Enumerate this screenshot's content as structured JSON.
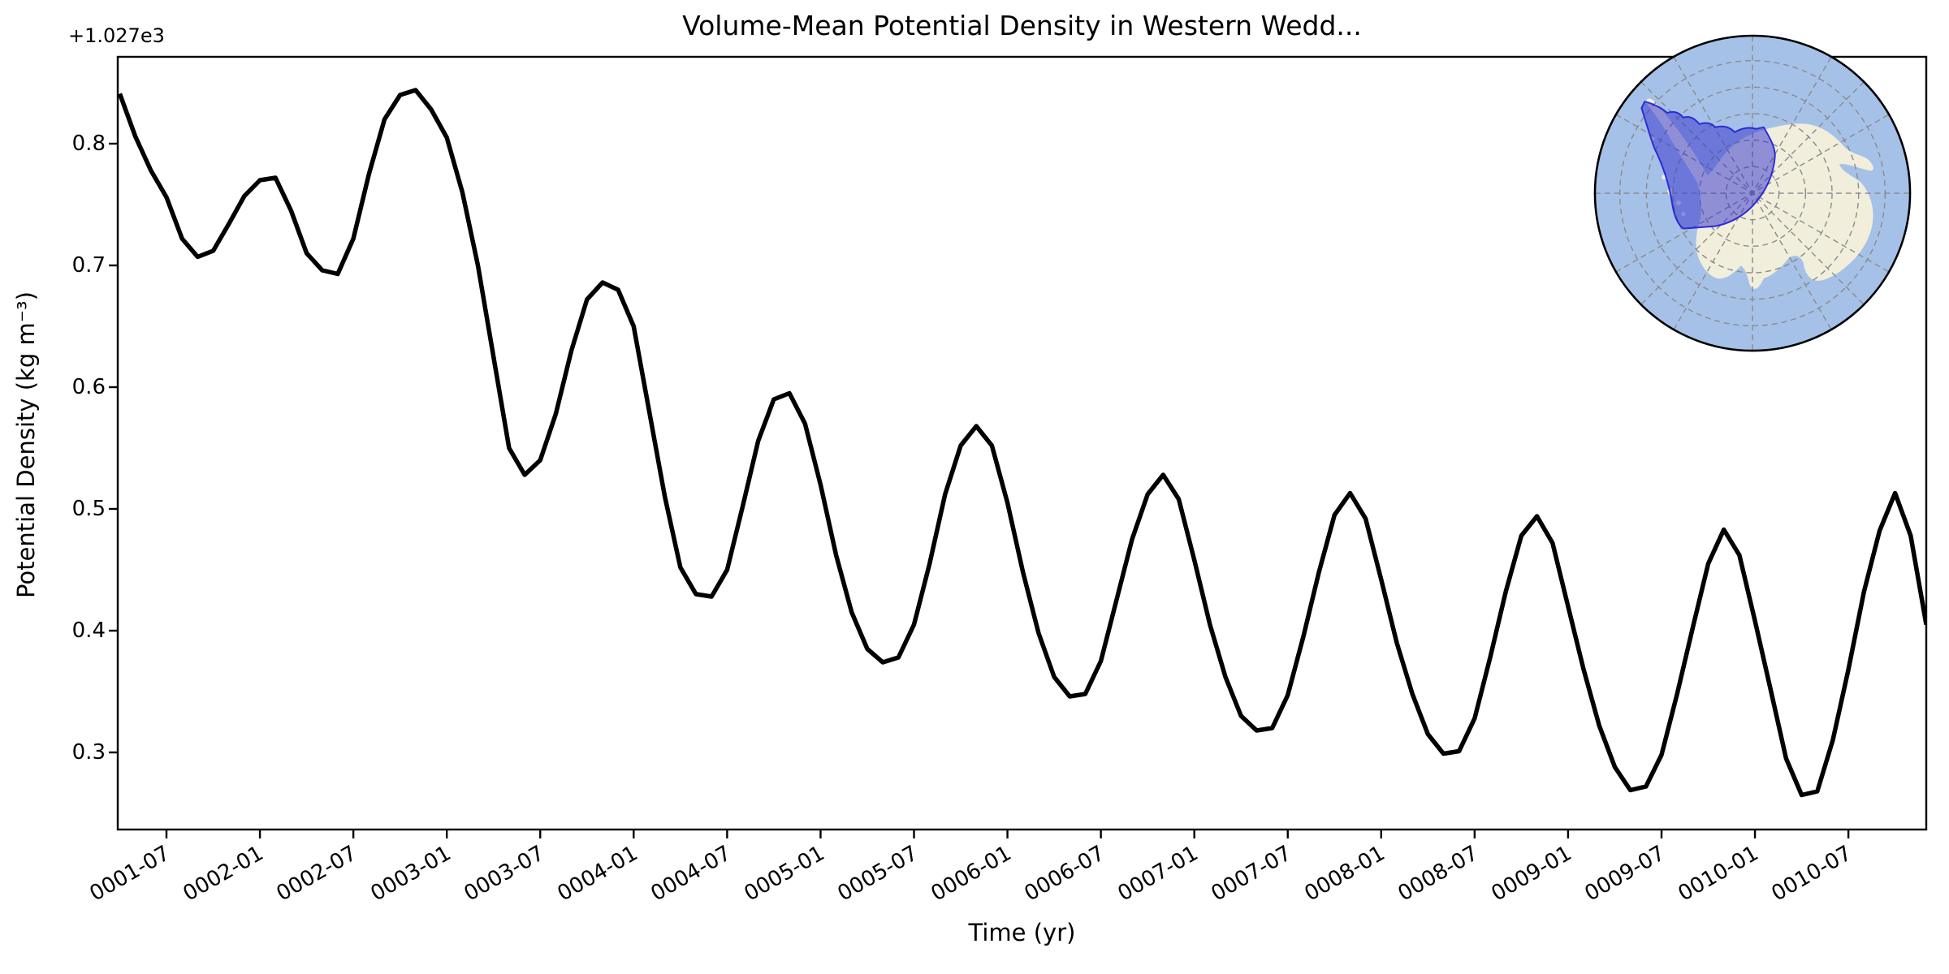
{
  "title": "Volume-Mean Potential Density in Western Wedd...",
  "axes": {
    "x_label": "Time (yr)",
    "y_label": "Potential Density (kg m⁻³)",
    "y_offset_text": "+1.027e3",
    "x_tick_labels": [
      "0001-07",
      "0002-01",
      "0002-07",
      "0003-01",
      "0003-07",
      "0004-01",
      "0004-07",
      "0005-01",
      "0005-07",
      "0006-01",
      "0006-07",
      "0007-01",
      "0007-07",
      "0008-01",
      "0008-07",
      "0009-01",
      "0009-07",
      "0010-01",
      "0010-07"
    ],
    "y_tick_labels": [
      "0.3",
      "0.4",
      "0.5",
      "0.6",
      "0.7",
      "0.8"
    ]
  },
  "chart_data": {
    "type": "line",
    "title": "Volume-Mean Potential Density in Western Wedd...",
    "xlabel": "Time (yr)",
    "ylabel": "Potential Density (kg m⁻³)",
    "y_offset": "+1.027e3",
    "ylim": [
      0.237,
      0.871
    ],
    "grid": false,
    "legend": "none",
    "line_color": "#000000",
    "line_width": 5.5,
    "x": [
      "0001-04",
      "0001-05",
      "0001-06",
      "0001-07",
      "0001-08",
      "0001-09",
      "0001-10",
      "0001-11",
      "0001-12",
      "0002-01",
      "0002-02",
      "0002-03",
      "0002-04",
      "0002-05",
      "0002-06",
      "0002-07",
      "0002-08",
      "0002-09",
      "0002-10",
      "0002-11",
      "0002-12",
      "0003-01",
      "0003-02",
      "0003-03",
      "0003-04",
      "0003-05",
      "0003-06",
      "0003-07",
      "0003-08",
      "0003-09",
      "0003-10",
      "0003-11",
      "0003-12",
      "0004-01",
      "0004-02",
      "0004-03",
      "0004-04",
      "0004-05",
      "0004-06",
      "0004-07",
      "0004-08",
      "0004-09",
      "0004-10",
      "0004-11",
      "0004-12",
      "0005-01",
      "0005-02",
      "0005-03",
      "0005-04",
      "0005-05",
      "0005-06",
      "0005-07",
      "0005-08",
      "0005-09",
      "0005-10",
      "0005-11",
      "0005-12",
      "0006-01",
      "0006-02",
      "0006-03",
      "0006-04",
      "0006-05",
      "0006-06",
      "0006-07",
      "0006-08",
      "0006-09",
      "0006-10",
      "0006-11",
      "0006-12",
      "0007-01",
      "0007-02",
      "0007-03",
      "0007-04",
      "0007-05",
      "0007-06",
      "0007-07",
      "0007-08",
      "0007-09",
      "0007-10",
      "0007-11",
      "0007-12",
      "0008-01",
      "0008-02",
      "0008-03",
      "0008-04",
      "0008-05",
      "0008-06",
      "0008-07",
      "0008-08",
      "0008-09",
      "0008-10",
      "0008-11",
      "0008-12",
      "0009-01",
      "0009-02",
      "0009-03",
      "0009-04",
      "0009-05",
      "0009-06",
      "0009-07",
      "0009-08",
      "0009-09",
      "0009-10",
      "0009-11",
      "0009-12",
      "0010-01",
      "0010-02",
      "0010-03",
      "0010-04",
      "0010-05",
      "0010-06",
      "0010-07",
      "0010-08",
      "0010-09",
      "0010-10",
      "0010-11",
      "0010-12"
    ],
    "values": [
      0.841,
      0.806,
      0.778,
      0.756,
      0.722,
      0.707,
      0.712,
      0.734,
      0.757,
      0.77,
      0.772,
      0.745,
      0.71,
      0.696,
      0.693,
      0.722,
      0.775,
      0.82,
      0.84,
      0.844,
      0.828,
      0.805,
      0.76,
      0.7,
      0.625,
      0.55,
      0.528,
      0.54,
      0.578,
      0.63,
      0.672,
      0.686,
      0.68,
      0.65,
      0.58,
      0.51,
      0.452,
      0.43,
      0.428,
      0.45,
      0.502,
      0.556,
      0.59,
      0.595,
      0.57,
      0.52,
      0.462,
      0.415,
      0.385,
      0.374,
      0.378,
      0.405,
      0.455,
      0.512,
      0.552,
      0.568,
      0.552,
      0.505,
      0.448,
      0.398,
      0.362,
      0.346,
      0.348,
      0.375,
      0.425,
      0.475,
      0.512,
      0.528,
      0.508,
      0.458,
      0.405,
      0.362,
      0.33,
      0.318,
      0.32,
      0.347,
      0.395,
      0.448,
      0.495,
      0.513,
      0.492,
      0.442,
      0.39,
      0.348,
      0.315,
      0.299,
      0.301,
      0.328,
      0.378,
      0.432,
      0.478,
      0.494,
      0.472,
      0.42,
      0.368,
      0.322,
      0.288,
      0.269,
      0.272,
      0.298,
      0.348,
      0.402,
      0.455,
      0.483,
      0.462,
      0.408,
      0.352,
      0.295,
      0.265,
      0.268,
      0.31,
      0.368,
      0.432,
      0.482,
      0.513,
      0.478,
      0.405
    ]
  },
  "inset_map": {
    "name": "antarctic-polar-stereographic-inset",
    "highlighted_region": "Western Weddell Sea",
    "colors": {
      "ocean": "#a6c1e7",
      "land": "#f1eedc",
      "region_fill": "rgba(48,48,205,0.50)",
      "region_edge": "#2b2bd6",
      "graticule": "#8a8a8a",
      "border": "#000000"
    }
  }
}
